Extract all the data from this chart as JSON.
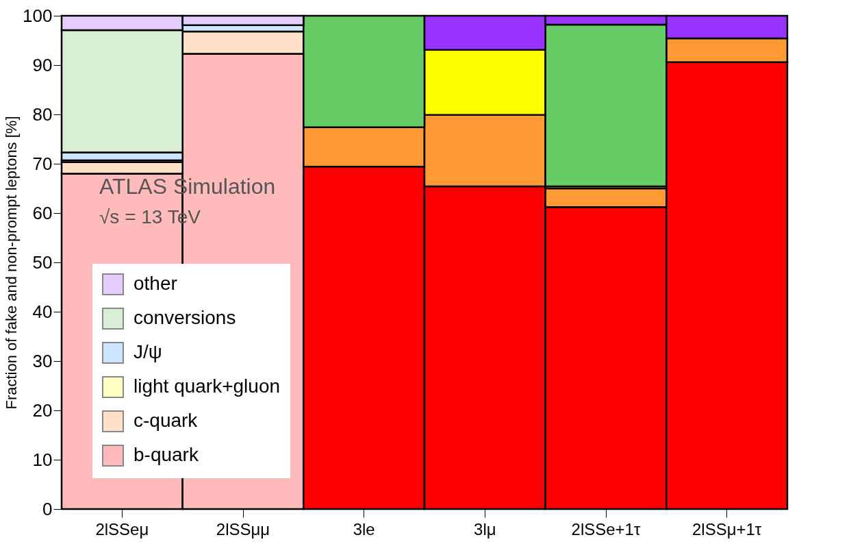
{
  "chart_data": {
    "type": "bar",
    "stacked": true,
    "ylabel": "Fraction of fake and non-prompt leptons [%]",
    "categories": [
      "2lSSeμ",
      "2lSSμμ",
      "3le",
      "3lμ",
      "2lSSe+1τ",
      "2lSSμ+1τ"
    ],
    "series": [
      {
        "name": "b-quark",
        "color": "#ffbbbb",
        "colors": [
          "#ffbbbb",
          "#ffbbbb",
          "#ff0000",
          "#ff0000",
          "#ff0000",
          "#ff0000"
        ],
        "values": [
          68,
          92.3,
          69.4,
          65.4,
          61.2,
          90.6
        ]
      },
      {
        "name": "c-quark",
        "color": "#ffe0c8",
        "colors": [
          "#ffe0c8",
          "#ffe0c8",
          "#ff9933",
          "#ff9933",
          "#ff9933",
          "#ff9933"
        ],
        "values": [
          2.3,
          4.5,
          8.0,
          14.5,
          3.8,
          4.8
        ]
      },
      {
        "name": "light quark+gluon",
        "color": "#ffffc0",
        "colors": [
          "#ffffc0",
          "#ffffc0",
          "#ffff00",
          "#ffff00",
          "#ffff00",
          "#ffff00"
        ],
        "values": [
          0.4,
          null,
          null,
          13.2,
          0.4,
          null
        ]
      },
      {
        "name": "J/ψ",
        "color": "#cce5ff",
        "colors": [
          "#cce5ff",
          "#cce5ff",
          "#99ccff",
          "#99ccff",
          "#99ccff",
          "#99ccff"
        ],
        "values": [
          1.6,
          1.3,
          null,
          null,
          null,
          null
        ]
      },
      {
        "name": "conversions",
        "color": "#d8efd6",
        "colors": [
          "#d8efd6",
          "#d8efd6",
          "#66cc66",
          "#66cc66",
          "#66cc66",
          "#66cc66"
        ],
        "values": [
          24.8,
          null,
          22.6,
          null,
          32.8,
          null
        ]
      },
      {
        "name": "other",
        "color": "#e5ccff",
        "colors": [
          "#e5ccff",
          "#e5ccff",
          "#9933ff",
          "#9933ff",
          "#9933ff",
          "#9933ff"
        ],
        "values": [
          2.9,
          1.9,
          null,
          6.9,
          1.8,
          4.6
        ]
      }
    ],
    "ylim": [
      0,
      100
    ],
    "yticks": [
      0,
      10,
      20,
      30,
      40,
      50,
      60,
      70,
      80,
      90,
      100
    ],
    "legend": "bottom left",
    "annotations": [
      "ATLAS Simulation",
      "√s = 13 TeV"
    ]
  }
}
